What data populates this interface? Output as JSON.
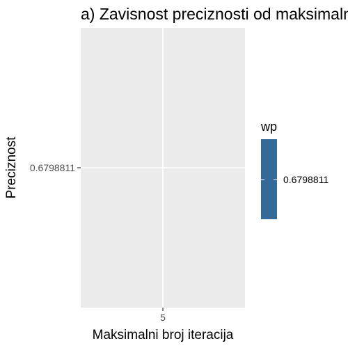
{
  "chart_data": {
    "type": "scatter",
    "title": "a) Zavisnost preciznosti od maksimalnog broja iteracija",
    "xlabel": "Maksimalni broj iteracija",
    "ylabel": "Preciznost",
    "x_ticks": [
      "5"
    ],
    "y_ticks": [
      "0.6798811"
    ],
    "series": [
      {
        "x": [
          5
        ],
        "y": [
          0.6798811
        ]
      }
    ],
    "legend": {
      "title": "wp",
      "placement": "right",
      "labels": [
        "0.6798811"
      ],
      "color": "#336A98"
    },
    "colors": {
      "panel": "#EBEBEB",
      "grid": "#FFFFFF",
      "tick_text": "#4D4D4D"
    },
    "grid": true
  }
}
